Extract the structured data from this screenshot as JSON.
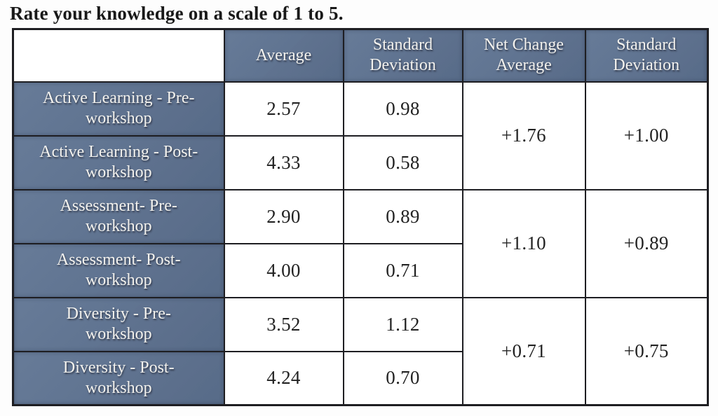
{
  "title": "Rate your knowledge on a scale of 1 to 5.",
  "colors": {
    "header_blue": "#5e7392",
    "border_black": "#1e1e22",
    "header_text": "#f3f2ee",
    "value_text": "#222222"
  },
  "table": {
    "headers": {
      "row_label": "",
      "average": "Average",
      "std_dev": "Standard\nDeviation",
      "net_change_average": "Net Change\nAverage",
      "net_change_std_dev": "Standard\nDeviation"
    },
    "groups": [
      {
        "rows": [
          {
            "label": "Active Learning - Pre-\nworkshop",
            "average": "2.57",
            "std_dev": "0.98"
          },
          {
            "label": "Active Learning - Post-\nworkshop",
            "average": "4.33",
            "std_dev": "0.58"
          }
        ],
        "net_change_average": "+1.76",
        "net_change_std_dev": "+1.00"
      },
      {
        "rows": [
          {
            "label": "Assessment- Pre-\nworkshop",
            "average": "2.90",
            "std_dev": "0.89"
          },
          {
            "label": "Assessment- Post-\nworkshop",
            "average": "4.00",
            "std_dev": "0.71"
          }
        ],
        "net_change_average": "+1.10",
        "net_change_std_dev": "+0.89"
      },
      {
        "rows": [
          {
            "label": "Diversity - Pre-\nworkshop",
            "average": "3.52",
            "std_dev": "1.12"
          },
          {
            "label": "Diversity - Post-\nworkshop",
            "average": "4.24",
            "std_dev": "0.70"
          }
        ],
        "net_change_average": "+0.71",
        "net_change_std_dev": "+0.75"
      }
    ]
  }
}
